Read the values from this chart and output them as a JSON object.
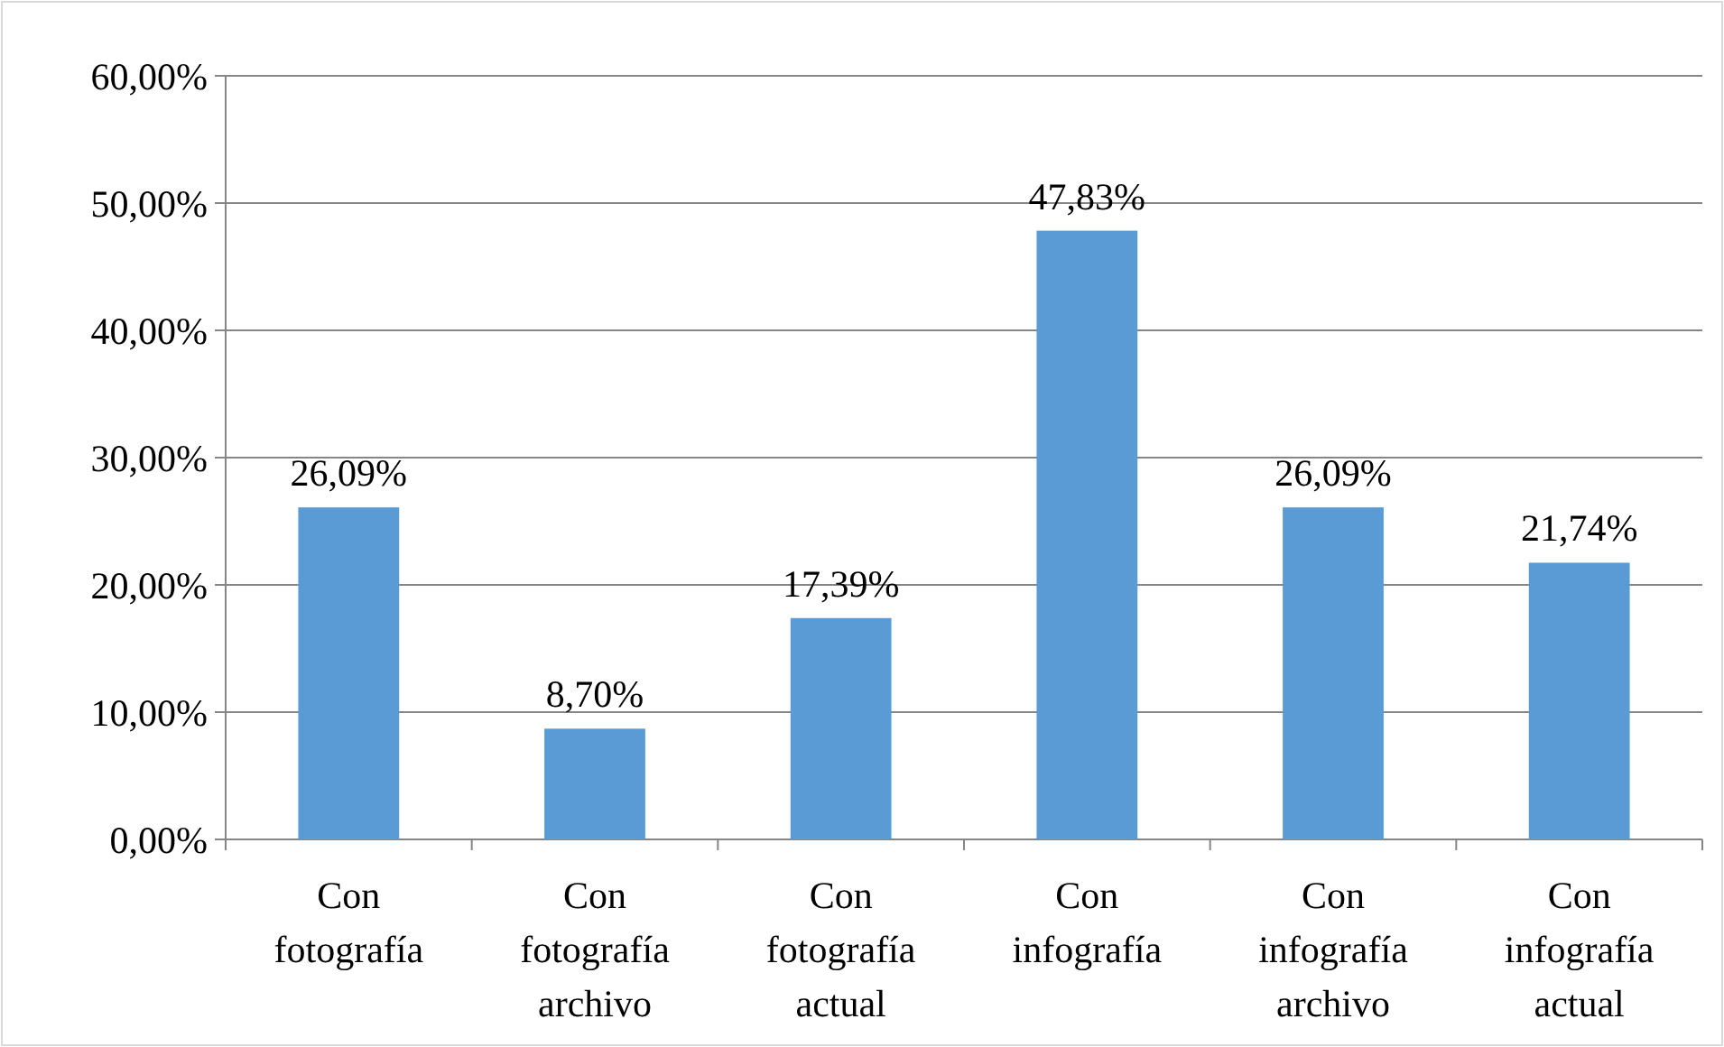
{
  "chart_data": {
    "type": "bar",
    "categories": [
      "Con fotografía",
      "Con fotografía archivo",
      "Con fotografía actual",
      "Con infografía",
      "Con infografía archivo",
      "Con infografía actual"
    ],
    "values": [
      26.09,
      8.7,
      17.39,
      47.83,
      26.09,
      21.74
    ],
    "value_labels": [
      "26,09%",
      "8,70%",
      "17,39%",
      "47,83%",
      "26,09%",
      "21,74%"
    ],
    "color": "#5b9bd5",
    "ylim": [
      0,
      60
    ],
    "yticks": [
      {
        "value": 0,
        "label": "0,00%"
      },
      {
        "value": 10,
        "label": "10,00%"
      },
      {
        "value": 20,
        "label": "20,00%"
      },
      {
        "value": 30,
        "label": "30,00%"
      },
      {
        "value": 40,
        "label": "40,00%"
      },
      {
        "value": 50,
        "label": "50,00%"
      },
      {
        "value": 60,
        "label": "60,00%"
      }
    ],
    "grid": "y"
  }
}
